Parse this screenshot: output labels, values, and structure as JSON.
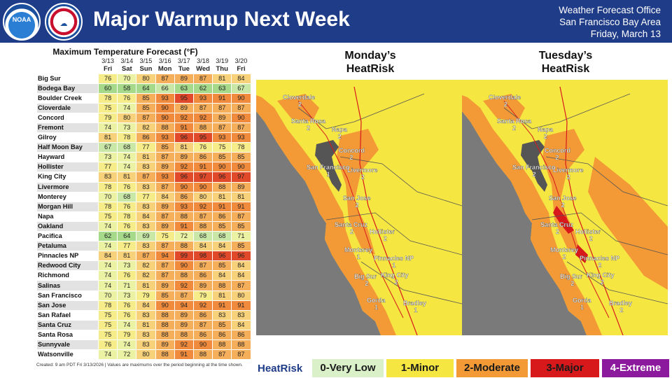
{
  "header": {
    "title": "Major Warmup Next Week",
    "office_line1": "Weather Forecast Office",
    "office_line2": "San Francisco Bay Area",
    "office_line3": "Friday, March 13",
    "logo_noaa": "NOAA"
  },
  "table": {
    "title": "Maximum Temperature Forecast (°F)",
    "dates": [
      "3/13",
      "3/14",
      "3/15",
      "3/16",
      "3/17",
      "3/18",
      "3/19",
      "3/20"
    ],
    "days": [
      "Fri",
      "Sat",
      "Sun",
      "Mon",
      "Tue",
      "Wed",
      "Thu",
      "Fri"
    ],
    "rows": [
      {
        "city": "Big Sur",
        "temps": [
          76,
          70,
          80,
          87,
          89,
          87,
          81,
          84
        ]
      },
      {
        "city": "Bodega Bay",
        "temps": [
          60,
          58,
          64,
          66,
          63,
          62,
          63,
          67
        ]
      },
      {
        "city": "Boulder Creek",
        "temps": [
          78,
          76,
          85,
          93,
          95,
          93,
          91,
          90
        ]
      },
      {
        "city": "Cloverdale",
        "temps": [
          75,
          74,
          85,
          90,
          89,
          87,
          87,
          87
        ]
      },
      {
        "city": "Concord",
        "temps": [
          79,
          80,
          87,
          90,
          92,
          92,
          89,
          90
        ]
      },
      {
        "city": "Fremont",
        "temps": [
          74,
          73,
          82,
          88,
          91,
          88,
          87,
          87
        ]
      },
      {
        "city": "Gilroy",
        "temps": [
          81,
          78,
          86,
          93,
          96,
          95,
          93,
          93
        ]
      },
      {
        "city": "Half Moon Bay",
        "temps": [
          67,
          68,
          77,
          85,
          81,
          76,
          75,
          78
        ]
      },
      {
        "city": "Hayward",
        "temps": [
          73,
          74,
          81,
          87,
          89,
          86,
          85,
          85
        ]
      },
      {
        "city": "Hollister",
        "temps": [
          77,
          74,
          83,
          89,
          92,
          91,
          90,
          90
        ]
      },
      {
        "city": "King City",
        "temps": [
          83,
          81,
          87,
          93,
          96,
          97,
          96,
          97
        ]
      },
      {
        "city": "Livermore",
        "temps": [
          78,
          76,
          83,
          87,
          90,
          90,
          88,
          89
        ]
      },
      {
        "city": "Monterey",
        "temps": [
          70,
          68,
          77,
          84,
          86,
          80,
          81,
          81
        ]
      },
      {
        "city": "Morgan Hill",
        "temps": [
          78,
          76,
          83,
          89,
          93,
          92,
          91,
          91
        ]
      },
      {
        "city": "Napa",
        "temps": [
          75,
          78,
          84,
          87,
          88,
          87,
          86,
          87
        ]
      },
      {
        "city": "Oakland",
        "temps": [
          74,
          76,
          83,
          89,
          91,
          88,
          85,
          85
        ]
      },
      {
        "city": "Pacifica",
        "temps": [
          62,
          64,
          69,
          75,
          72,
          68,
          68,
          71
        ]
      },
      {
        "city": "Petaluma",
        "temps": [
          74,
          77,
          83,
          87,
          88,
          84,
          84,
          85
        ]
      },
      {
        "city": "Pinnacles NP",
        "temps": [
          84,
          81,
          87,
          94,
          99,
          98,
          96,
          96
        ]
      },
      {
        "city": "Redwood City",
        "temps": [
          74,
          73,
          82,
          87,
          90,
          87,
          85,
          84
        ]
      },
      {
        "city": "Richmond",
        "temps": [
          74,
          76,
          82,
          87,
          88,
          86,
          84,
          84
        ]
      },
      {
        "city": "Salinas",
        "temps": [
          74,
          71,
          81,
          89,
          92,
          89,
          88,
          87
        ]
      },
      {
        "city": "San Francisco",
        "temps": [
          70,
          73,
          79,
          85,
          87,
          79,
          81,
          80
        ]
      },
      {
        "city": "San Jose",
        "temps": [
          78,
          76,
          84,
          90,
          94,
          92,
          91,
          91
        ]
      },
      {
        "city": "San Rafael",
        "temps": [
          75,
          76,
          83,
          88,
          89,
          86,
          83,
          83
        ]
      },
      {
        "city": "Santa Cruz",
        "temps": [
          75,
          74,
          81,
          88,
          89,
          87,
          85,
          84
        ]
      },
      {
        "city": "Santa Rosa",
        "temps": [
          75,
          79,
          83,
          88,
          88,
          86,
          86,
          86
        ]
      },
      {
        "city": "Sunnyvale",
        "temps": [
          76,
          74,
          83,
          89,
          92,
          90,
          88,
          88
        ]
      },
      {
        "city": "Watsonville",
        "temps": [
          74,
          72,
          80,
          88,
          91,
          88,
          87,
          87
        ]
      }
    ],
    "footnote": "Created: 9 am PDT Fri 3/13/2026  |  Values are maximums over the period beginning at the time shown."
  },
  "maps": {
    "monday_title_1": "Monday’s",
    "monday_title_2": "HeatRisk",
    "tuesday_title_1": "Tuesday’s",
    "tuesday_title_2": "HeatRisk",
    "monday_labels": [
      {
        "name": "Cloverdale",
        "val": "2"
      },
      {
        "name": "Santa Rosa",
        "val": "2"
      },
      {
        "name": "Napa",
        "val": "2"
      },
      {
        "name": "Concord",
        "val": "2"
      },
      {
        "name": "San Francisco",
        "val": "1"
      },
      {
        "name": "Livermore",
        "val": "2"
      },
      {
        "name": "San Jose",
        "val": "2"
      },
      {
        "name": "Santa Cruz",
        "val": "2"
      },
      {
        "name": "Hollister",
        "val": "2"
      },
      {
        "name": "Monterey",
        "val": "1"
      },
      {
        "name": "Pinnacles NP",
        "val": "1"
      },
      {
        "name": "Big Sur",
        "val": "2"
      },
      {
        "name": "King City",
        "val": "2"
      },
      {
        "name": "Gorda",
        "val": "1"
      },
      {
        "name": "Bradley",
        "val": "1"
      }
    ],
    "tuesday_labels": [
      {
        "name": "Cloverdale",
        "val": "2"
      },
      {
        "name": "Santa Rosa",
        "val": "2"
      },
      {
        "name": "Napa",
        "val": "2"
      },
      {
        "name": "Concord",
        "val": "2"
      },
      {
        "name": "San Francisco",
        "val": "2"
      },
      {
        "name": "Livermore",
        "val": "2"
      },
      {
        "name": "San Jose",
        "val": "2"
      },
      {
        "name": "Santa Cruz",
        "val": "2"
      },
      {
        "name": "Hollister",
        "val": "2"
      },
      {
        "name": "Monterey",
        "val": "2"
      },
      {
        "name": "Pinnacles NP",
        "val": "2"
      },
      {
        "name": "Big Sur",
        "val": "2"
      },
      {
        "name": "King City",
        "val": "2"
      },
      {
        "name": "Gorda",
        "val": "1"
      },
      {
        "name": "Bradley",
        "val": "2"
      }
    ]
  },
  "legend": {
    "title": "HeatRisk",
    "items": [
      {
        "label": "0-Very Low",
        "color": "#d9f0c8",
        "text": "#1a1a1a"
      },
      {
        "label": "1-Minor",
        "color": "#f5e642",
        "text": "#1a1a1a"
      },
      {
        "label": "2-Moderate",
        "color": "#f39a36",
        "text": "#1a1a1a"
      },
      {
        "label": "3-Major",
        "color": "#d7191c",
        "text": "#1a1a1a"
      },
      {
        "label": "4-Extreme",
        "color": "#8b1a9c",
        "text": "#ffffff"
      }
    ]
  },
  "colors": {
    "header_bg": "#1f3c88",
    "water": "#7a7a7a",
    "yellow": "#f5e642",
    "orange": "#f39a36",
    "red": "#d7191c"
  }
}
